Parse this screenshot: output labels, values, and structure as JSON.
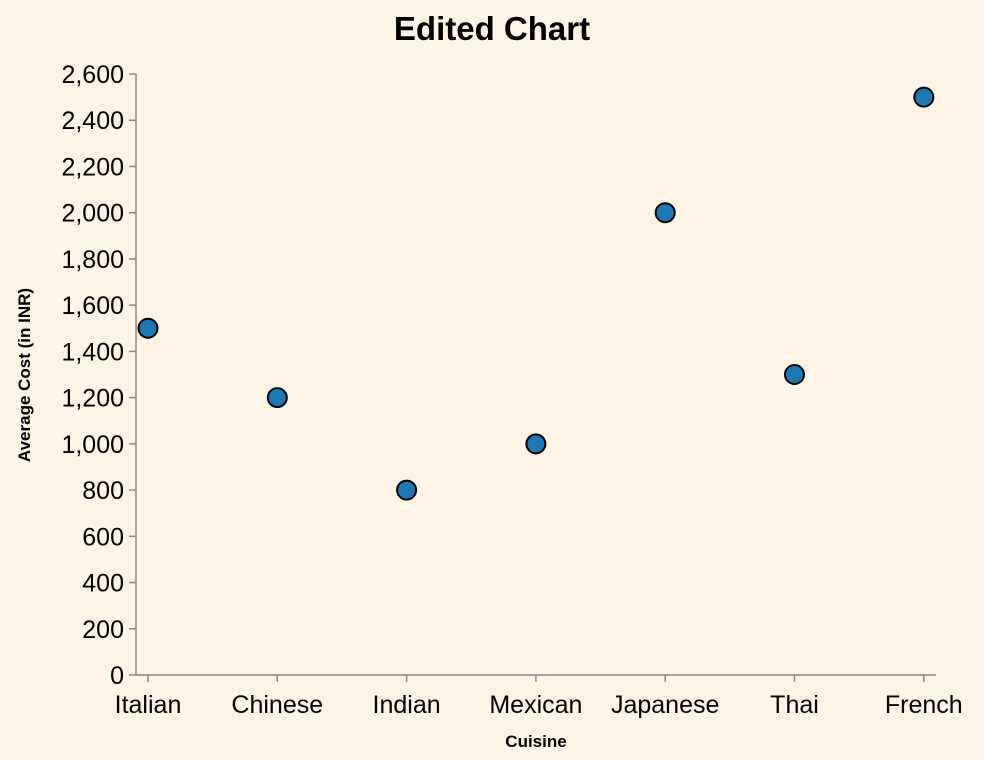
{
  "colors": {
    "background": "#fdf3e6",
    "point_fill": "#1f77b4",
    "point_stroke": "#000000",
    "axis": "#888888"
  },
  "chart_data": {
    "type": "scatter",
    "title": "Edited Chart",
    "xlabel": "Cuisine",
    "ylabel": "Average Cost (in INR)",
    "categories": [
      "Italian",
      "Chinese",
      "Indian",
      "Mexican",
      "Japanese",
      "Thai",
      "French"
    ],
    "values": [
      1500,
      1200,
      800,
      1000,
      2000,
      1300,
      2500
    ],
    "ylim": [
      0,
      2600
    ],
    "yticks": [
      "0",
      "200",
      "400",
      "600",
      "800",
      "1,000",
      "1,200",
      "1,400",
      "1,600",
      "1,800",
      "2,000",
      "2,200",
      "2,400",
      "2,600"
    ],
    "grid": false
  }
}
